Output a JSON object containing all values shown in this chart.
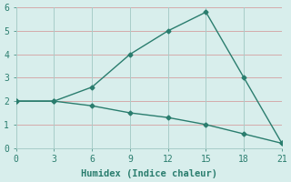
{
  "xlabel": "Humidex (Indice chaleur)",
  "line1_x": [
    0,
    3,
    6,
    9,
    12,
    15,
    18,
    21
  ],
  "line1_y": [
    2.0,
    2.0,
    2.6,
    4.0,
    5.0,
    5.8,
    3.0,
    0.2
  ],
  "line2_x": [
    0,
    3,
    6,
    9,
    12,
    15,
    18,
    21
  ],
  "line2_y": [
    2.0,
    2.0,
    1.8,
    1.5,
    1.3,
    1.0,
    0.6,
    0.2
  ],
  "line_color": "#2a7d6e",
  "bg_color": "#d8eeec",
  "grid_h_color": "#d4aaaa",
  "grid_v_color": "#a8ccc8",
  "xlim": [
    0,
    21
  ],
  "ylim": [
    0,
    6
  ],
  "xticks": [
    0,
    3,
    6,
    9,
    12,
    15,
    18,
    21
  ],
  "yticks": [
    0,
    1,
    2,
    3,
    4,
    5,
    6
  ],
  "marker": "D",
  "markersize": 2.5,
  "linewidth": 1.0,
  "xlabel_fontsize": 7.5,
  "tick_fontsize": 7
}
